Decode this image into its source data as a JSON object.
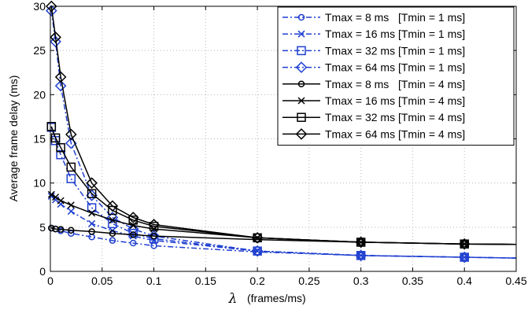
{
  "chart_data": {
    "type": "line",
    "xlabel_symbol": "λ",
    "xlabel_unit": "(frames/ms)",
    "ylabel": "Average frame delay (ms)",
    "xlim": [
      0,
      0.45
    ],
    "ylim": [
      0,
      30
    ],
    "xticks": [
      "0",
      "0.05",
      "0.1",
      "0.15",
      "0.2",
      "0.25",
      "0.3",
      "0.35",
      "0.4",
      "0.45"
    ],
    "yticks": [
      "0",
      "5",
      "10",
      "15",
      "20",
      "25",
      "30"
    ],
    "grid": true,
    "legend_position": "top-right",
    "series": [
      {
        "name": "Tmax = 8 ms   [Tmin = 1 ms]",
        "color": "#1f3fd0",
        "dash": "dashdot",
        "marker": "circle",
        "x": [
          0.001,
          0.005,
          0.01,
          0.02,
          0.04,
          0.06,
          0.08,
          0.1,
          0.2,
          0.3,
          0.4,
          0.45
        ],
        "y": [
          4.9,
          4.8,
          4.6,
          4.3,
          3.9,
          3.5,
          3.2,
          2.9,
          2.2,
          1.8,
          1.6,
          1.5
        ]
      },
      {
        "name": "Tmax = 16 ms [Tmin = 1 ms]",
        "color": "#1f3fd0",
        "dash": "dashdot",
        "marker": "x",
        "x": [
          0.001,
          0.005,
          0.01,
          0.02,
          0.04,
          0.06,
          0.08,
          0.1,
          0.2,
          0.3,
          0.4,
          0.45
        ],
        "y": [
          8.5,
          8.1,
          7.6,
          6.8,
          5.4,
          4.6,
          4.0,
          3.5,
          2.3,
          1.8,
          1.6,
          1.5
        ]
      },
      {
        "name": "Tmax = 32 ms [Tmin = 1 ms]",
        "color": "#1f3fd0",
        "dash": "dashdot",
        "marker": "square",
        "x": [
          0.001,
          0.005,
          0.01,
          0.02,
          0.04,
          0.06,
          0.08,
          0.1,
          0.2,
          0.3,
          0.4,
          0.45
        ],
        "y": [
          16.3,
          14.8,
          13.2,
          10.5,
          7.2,
          5.4,
          4.3,
          3.7,
          2.3,
          1.8,
          1.6,
          1.5
        ]
      },
      {
        "name": "Tmax = 64 ms [Tmin = 1 ms]",
        "color": "#1f3fd0",
        "dash": "dashdot",
        "marker": "diamond",
        "x": [
          0.001,
          0.005,
          0.01,
          0.02,
          0.04,
          0.06,
          0.08,
          0.1,
          0.2,
          0.3,
          0.4,
          0.45
        ],
        "y": [
          29.5,
          26.0,
          21.0,
          14.5,
          8.6,
          6.1,
          4.8,
          4.0,
          2.3,
          1.8,
          1.6,
          1.5
        ]
      },
      {
        "name": "Tmax = 8 ms   [Tmin = 4 ms]",
        "color": "#000000",
        "dash": "solid",
        "marker": "circle",
        "x": [
          0.001,
          0.005,
          0.01,
          0.02,
          0.04,
          0.06,
          0.08,
          0.1,
          0.2,
          0.3,
          0.4,
          0.45
        ],
        "y": [
          4.9,
          4.8,
          4.75,
          4.65,
          4.5,
          4.3,
          4.15,
          4.0,
          3.6,
          3.3,
          3.1,
          3.05
        ]
      },
      {
        "name": "Tmax = 16 ms [Tmin = 4 ms]",
        "color": "#000000",
        "dash": "solid",
        "marker": "x",
        "x": [
          0.001,
          0.005,
          0.01,
          0.02,
          0.04,
          0.06,
          0.08,
          0.1,
          0.2,
          0.3,
          0.4,
          0.45
        ],
        "y": [
          8.7,
          8.4,
          8.0,
          7.5,
          6.6,
          5.8,
          5.2,
          4.8,
          3.8,
          3.3,
          3.1,
          3.05
        ]
      },
      {
        "name": "Tmax = 32 ms [Tmin = 4 ms]",
        "color": "#000000",
        "dash": "solid",
        "marker": "square",
        "x": [
          0.001,
          0.005,
          0.01,
          0.02,
          0.04,
          0.06,
          0.08,
          0.1,
          0.2,
          0.3,
          0.4,
          0.45
        ],
        "y": [
          16.4,
          15.1,
          14.0,
          11.8,
          8.8,
          6.9,
          5.8,
          5.1,
          3.8,
          3.3,
          3.1,
          3.05
        ]
      },
      {
        "name": "Tmax = 64 ms [Tmin = 4 ms]",
        "color": "#000000",
        "dash": "solid",
        "marker": "diamond",
        "x": [
          0.001,
          0.005,
          0.01,
          0.02,
          0.04,
          0.06,
          0.08,
          0.1,
          0.2,
          0.3,
          0.4,
          0.45
        ],
        "y": [
          30.0,
          26.5,
          22.0,
          15.5,
          10.0,
          7.4,
          6.1,
          5.3,
          3.8,
          3.3,
          3.1,
          3.05
        ]
      }
    ]
  }
}
